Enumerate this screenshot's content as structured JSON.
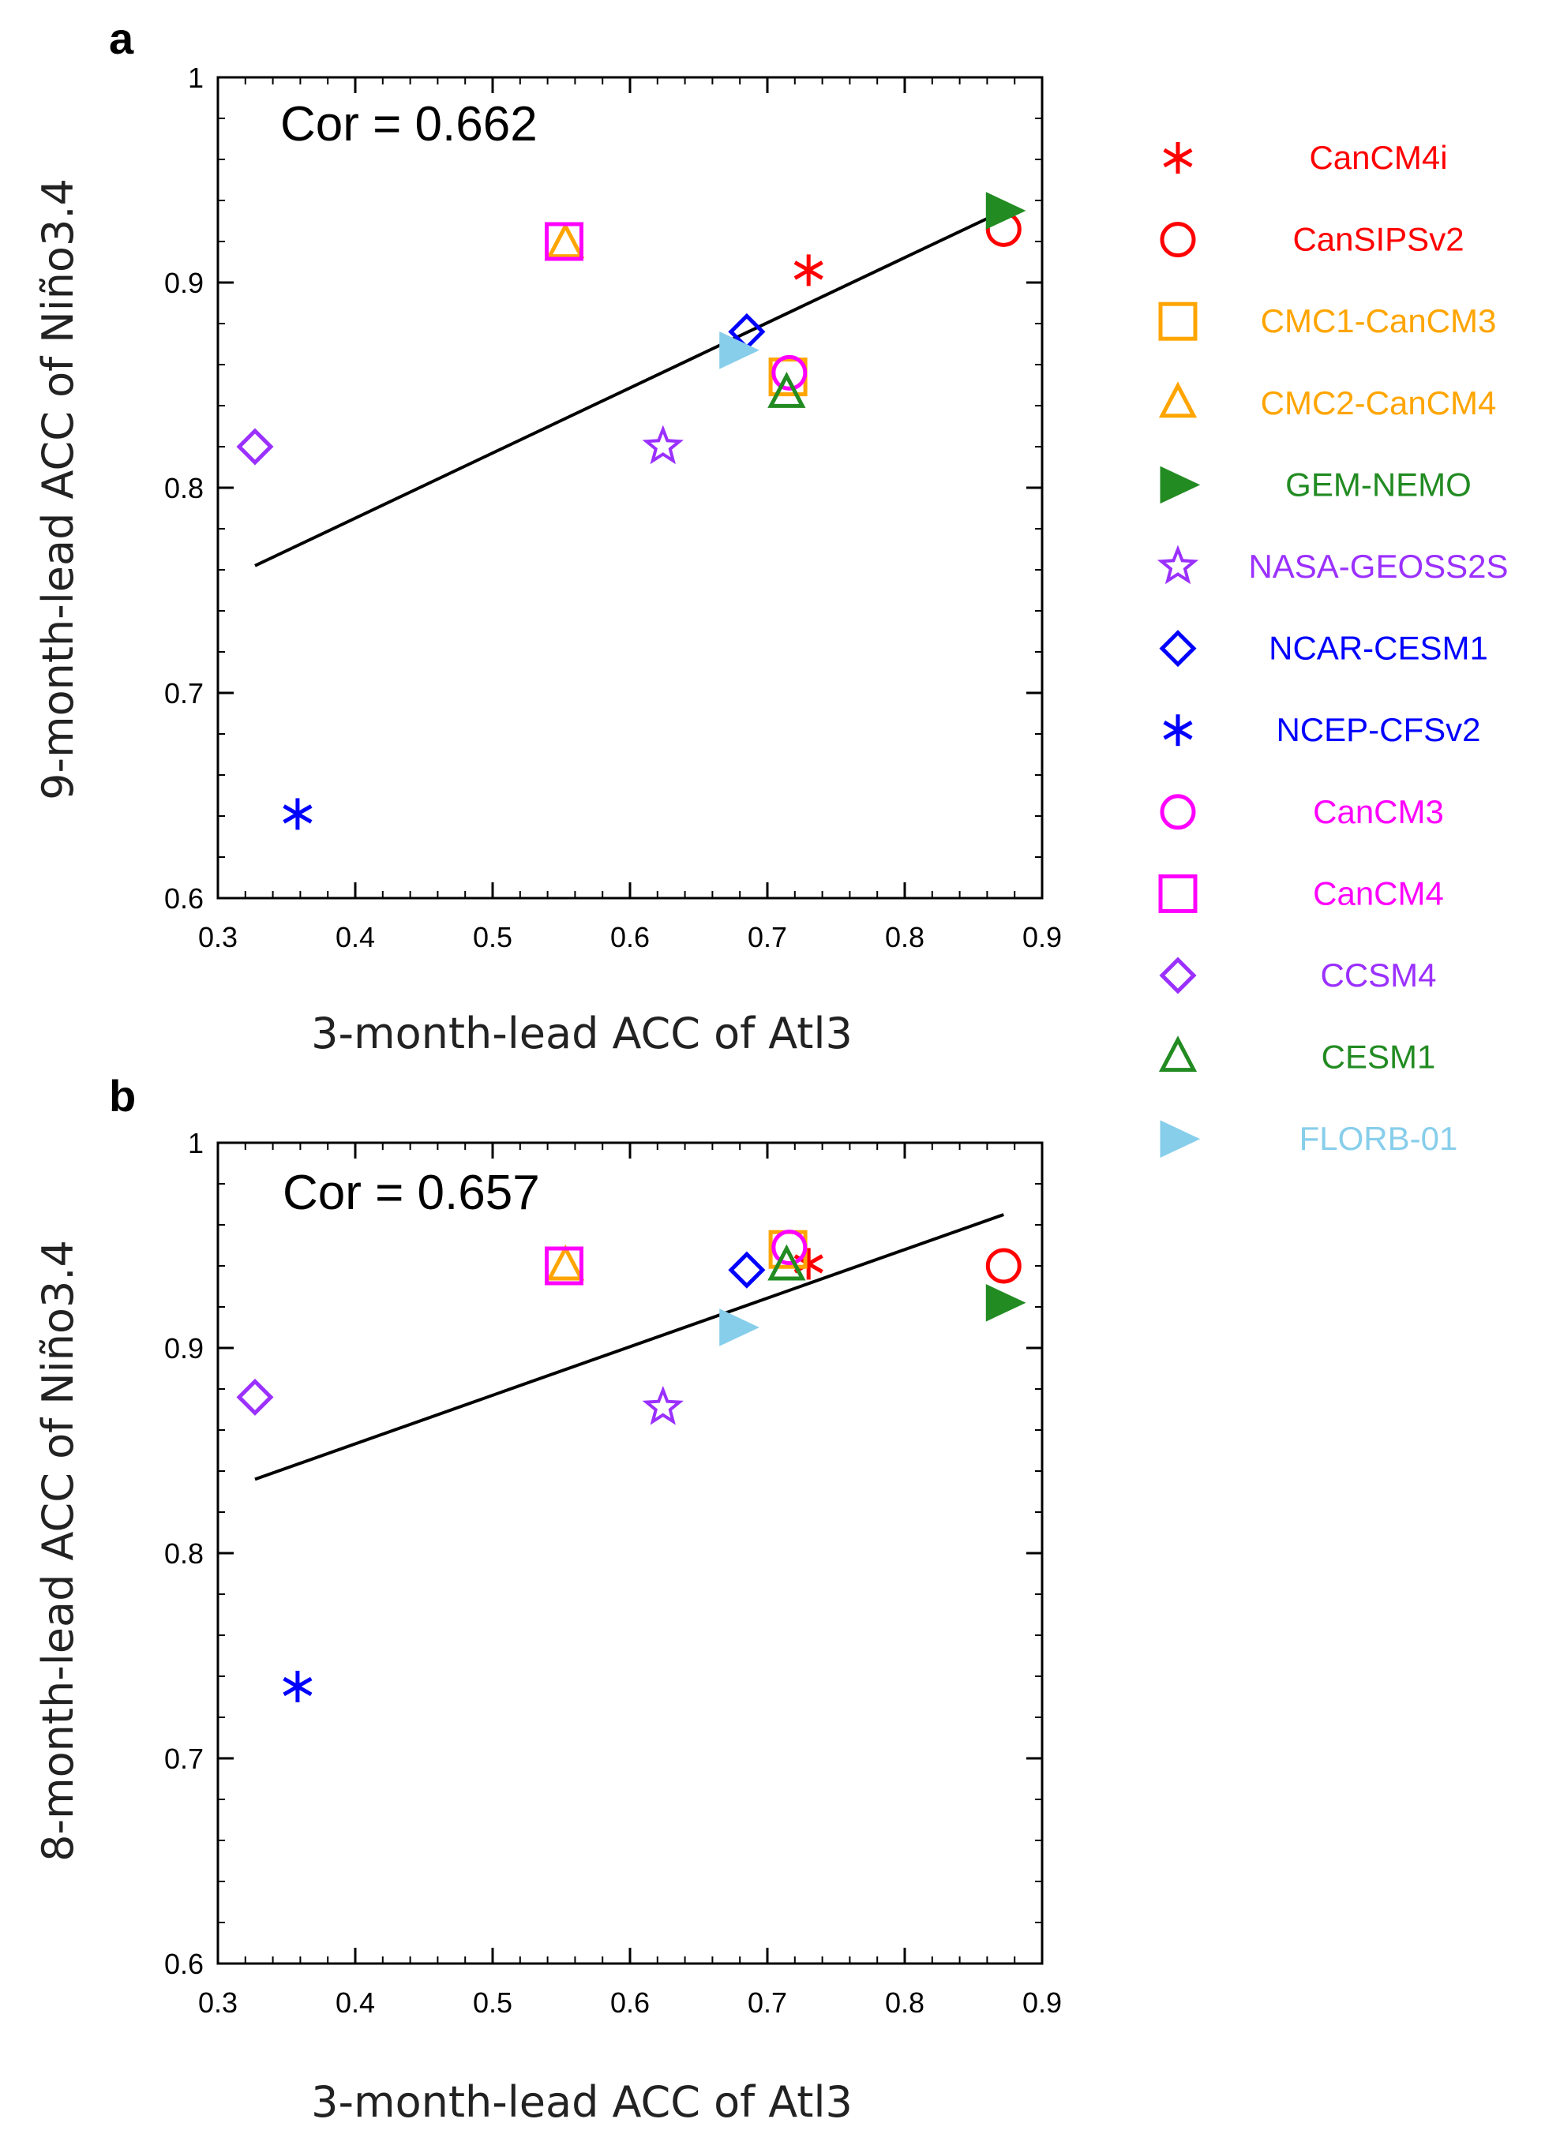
{
  "chart_data": [
    {
      "type": "scatter",
      "panel": "a",
      "annotation": "Cor = 0.662",
      "xlabel": "3-month-lead ACC of Atl3",
      "ylabel": "9-month-lead ACC of Niño3.4",
      "xlim": [
        0.3,
        0.9
      ],
      "ylim": [
        0.6,
        1.0
      ],
      "xticks": [
        "0.3",
        "0.4",
        "0.5",
        "0.6",
        "0.7",
        "0.8",
        "0.9"
      ],
      "yticks": [
        "0.6",
        "0.7",
        "0.8",
        "0.9",
        "1"
      ],
      "regression_line": {
        "x": [
          0.327,
          0.872
        ],
        "y": [
          0.762,
          0.935
        ]
      },
      "points": [
        {
          "model": "CanCM4i",
          "x": 0.73,
          "y": 0.906
        },
        {
          "model": "CanSIPSv2",
          "x": 0.872,
          "y": 0.926
        },
        {
          "model": "CMC1-CanCM3",
          "x": 0.715,
          "y": 0.854
        },
        {
          "model": "CMC2-CanCM4",
          "x": 0.553,
          "y": 0.919
        },
        {
          "model": "GEM-NEMO",
          "x": 0.872,
          "y": 0.935
        },
        {
          "model": "NASA-GEOSS2S",
          "x": 0.624,
          "y": 0.82
        },
        {
          "model": "NCAR-CESM1",
          "x": 0.685,
          "y": 0.876
        },
        {
          "model": "NCEP-CFSv2",
          "x": 0.358,
          "y": 0.641
        },
        {
          "model": "CanCM3",
          "x": 0.716,
          "y": 0.856
        },
        {
          "model": "CanCM4",
          "x": 0.552,
          "y": 0.92
        },
        {
          "model": "CCSM4",
          "x": 0.327,
          "y": 0.82
        },
        {
          "model": "CESM1",
          "x": 0.714,
          "y": 0.846
        },
        {
          "model": "FLORB-01",
          "x": 0.678,
          "y": 0.867
        }
      ]
    },
    {
      "type": "scatter",
      "panel": "b",
      "annotation": "Cor = 0.657",
      "xlabel": "3-month-lead ACC of Atl3",
      "ylabel": "8-month-lead ACC of Niño3.4",
      "xlim": [
        0.3,
        0.9
      ],
      "ylim": [
        0.6,
        1.0
      ],
      "xticks": [
        "0.3",
        "0.4",
        "0.5",
        "0.6",
        "0.7",
        "0.8",
        "0.9"
      ],
      "yticks": [
        "0.6",
        "0.7",
        "0.8",
        "0.9",
        "1"
      ],
      "regression_line": {
        "x": [
          0.327,
          0.872
        ],
        "y": [
          0.836,
          0.965
        ]
      },
      "points": [
        {
          "model": "CanCM4i",
          "x": 0.73,
          "y": 0.941
        },
        {
          "model": "CanSIPSv2",
          "x": 0.872,
          "y": 0.94
        },
        {
          "model": "CMC1-CanCM3",
          "x": 0.715,
          "y": 0.948
        },
        {
          "model": "CMC2-CanCM4",
          "x": 0.553,
          "y": 0.94
        },
        {
          "model": "GEM-NEMO",
          "x": 0.872,
          "y": 0.922
        },
        {
          "model": "NASA-GEOSS2S",
          "x": 0.624,
          "y": 0.871
        },
        {
          "model": "NCAR-CESM1",
          "x": 0.685,
          "y": 0.938
        },
        {
          "model": "NCEP-CFSv2",
          "x": 0.358,
          "y": 0.735
        },
        {
          "model": "CanCM3",
          "x": 0.716,
          "y": 0.949
        },
        {
          "model": "CanCM4",
          "x": 0.552,
          "y": 0.94
        },
        {
          "model": "CCSM4",
          "x": 0.327,
          "y": 0.876
        },
        {
          "model": "CESM1",
          "x": 0.714,
          "y": 0.94
        },
        {
          "model": "FLORB-01",
          "x": 0.678,
          "y": 0.91
        }
      ]
    }
  ],
  "legend": [
    {
      "name": "CanCM4i",
      "marker": "asterisk",
      "color": "#ff0000"
    },
    {
      "name": "CanSIPSv2",
      "marker": "circle",
      "color": "#ff0000"
    },
    {
      "name": "CMC1-CanCM3",
      "marker": "square",
      "color": "#ffa500"
    },
    {
      "name": "CMC2-CanCM4",
      "marker": "triangle",
      "color": "#ffa500"
    },
    {
      "name": "GEM-NEMO",
      "marker": "filled-triangle-right",
      "color": "#228b22"
    },
    {
      "name": "NASA-GEOSS2S",
      "marker": "star",
      "color": "#9b30ff"
    },
    {
      "name": "NCAR-CESM1",
      "marker": "diamond",
      "color": "#0000ff"
    },
    {
      "name": "NCEP-CFSv2",
      "marker": "asterisk",
      "color": "#0000ff"
    },
    {
      "name": "CanCM3",
      "marker": "circle",
      "color": "#ff00ff"
    },
    {
      "name": "CanCM4",
      "marker": "square",
      "color": "#ff00ff"
    },
    {
      "name": "CCSM4",
      "marker": "diamond",
      "color": "#9b30ff"
    },
    {
      "name": "CESM1",
      "marker": "triangle",
      "color": "#228b22"
    },
    {
      "name": "FLORB-01",
      "marker": "filled-triangle-right",
      "color": "#87ceeb"
    }
  ]
}
